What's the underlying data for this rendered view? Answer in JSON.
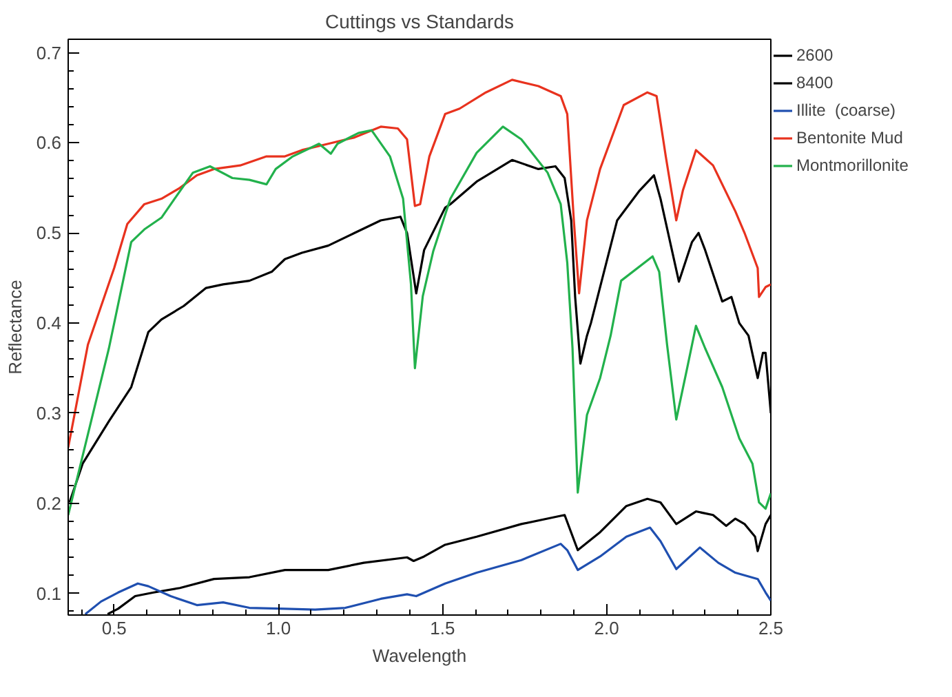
{
  "chart_data": {
    "type": "line",
    "title": "Cuttings vs Standards",
    "xlabel": "Wavelength",
    "ylabel": "Reflectance",
    "xlim": [
      0.36,
      2.5
    ],
    "ylim": [
      0.076,
      0.715
    ],
    "xticks": [
      {
        "value": 0.5,
        "label": "0.5"
      },
      {
        "value": 1,
        "label": "1.0"
      },
      {
        "value": 1.5,
        "label": "1.5"
      },
      {
        "value": 2,
        "label": "2.0"
      },
      {
        "value": 2.5,
        "label": "2.5"
      }
    ],
    "yticks": [
      {
        "value": 0.1,
        "label": "0.1"
      },
      {
        "value": 0.2,
        "label": "0.2"
      },
      {
        "value": 0.3,
        "label": "0.3"
      },
      {
        "value": 0.4,
        "label": "0.4"
      },
      {
        "value": 0.5,
        "label": "0.5"
      },
      {
        "value": 0.6,
        "label": "0.6"
      },
      {
        "value": 0.7,
        "label": "0.7"
      }
    ],
    "grid": false,
    "legend": "right",
    "marker": "none",
    "line_style": "solid",
    "series": [
      {
        "name": "2600",
        "color": "#000000",
        "x": [
          0.364,
          0.404,
          0.484,
          0.552,
          0.604,
          0.644,
          0.712,
          0.78,
          0.832,
          0.912,
          0.98,
          1.02,
          1.072,
          1.152,
          1.232,
          1.312,
          1.372,
          1.392,
          1.42,
          1.444,
          1.508,
          1.524,
          1.604,
          1.712,
          1.792,
          1.844,
          1.872,
          1.892,
          1.904,
          1.92,
          1.94,
          1.952,
          2.032,
          2.1,
          2.144,
          2.164,
          2.22,
          2.26,
          2.28,
          2.3,
          2.352,
          2.38,
          2.404,
          2.432,
          2.46,
          2.476,
          2.484,
          2.5
        ],
        "values": [
          0.201,
          0.244,
          0.291,
          0.329,
          0.39,
          0.404,
          0.419,
          0.439,
          0.443,
          0.447,
          0.457,
          0.471,
          0.478,
          0.486,
          0.5,
          0.514,
          0.518,
          0.5,
          0.433,
          0.481,
          0.528,
          0.532,
          0.557,
          0.581,
          0.571,
          0.574,
          0.561,
          0.514,
          0.429,
          0.355,
          0.386,
          0.4,
          0.514,
          0.547,
          0.564,
          0.538,
          0.446,
          0.49,
          0.5,
          0.481,
          0.424,
          0.429,
          0.4,
          0.386,
          0.339,
          0.367,
          0.367,
          0.3
        ]
      },
      {
        "name": "8400",
        "color": "#000000",
        "x": [
          0.48,
          0.512,
          0.564,
          0.62,
          0.7,
          0.804,
          0.912,
          1.02,
          1.152,
          1.26,
          1.392,
          1.412,
          1.444,
          1.508,
          1.604,
          1.74,
          1.832,
          1.872,
          1.912,
          1.98,
          2.06,
          2.124,
          2.164,
          2.212,
          2.272,
          2.324,
          2.364,
          2.392,
          2.42,
          2.452,
          2.46,
          2.484,
          2.5
        ],
        "values": [
          0.077,
          0.083,
          0.097,
          0.101,
          0.106,
          0.116,
          0.118,
          0.126,
          0.126,
          0.134,
          0.14,
          0.136,
          0.141,
          0.154,
          0.163,
          0.177,
          0.184,
          0.187,
          0.148,
          0.168,
          0.197,
          0.205,
          0.201,
          0.177,
          0.191,
          0.187,
          0.175,
          0.183,
          0.177,
          0.163,
          0.147,
          0.177,
          0.187
        ]
      },
      {
        "name": "Illite  (coarse)",
        "color": "#1f4fb0",
        "x": [
          0.412,
          0.46,
          0.512,
          0.572,
          0.604,
          0.672,
          0.752,
          0.832,
          0.912,
          1.02,
          1.112,
          1.204,
          1.312,
          1.392,
          1.42,
          1.508,
          1.604,
          1.74,
          1.86,
          1.88,
          1.912,
          1.98,
          2.06,
          2.132,
          2.164,
          2.212,
          2.284,
          2.34,
          2.392,
          2.46,
          2.484,
          2.5
        ],
        "values": [
          0.077,
          0.091,
          0.101,
          0.111,
          0.108,
          0.097,
          0.087,
          0.09,
          0.084,
          0.083,
          0.082,
          0.084,
          0.094,
          0.099,
          0.097,
          0.111,
          0.123,
          0.137,
          0.155,
          0.148,
          0.126,
          0.141,
          0.163,
          0.173,
          0.158,
          0.127,
          0.151,
          0.134,
          0.123,
          0.116,
          0.101,
          0.092
        ]
      },
      {
        "name": "Bentonite Mud",
        "color": "#e8321e",
        "x": [
          0.36,
          0.42,
          0.5,
          0.54,
          0.592,
          0.644,
          0.7,
          0.752,
          0.804,
          0.884,
          0.964,
          1.02,
          1.072,
          1.152,
          1.232,
          1.312,
          1.364,
          1.392,
          1.416,
          1.432,
          1.46,
          1.508,
          1.552,
          1.632,
          1.712,
          1.792,
          1.86,
          1.88,
          1.9,
          1.916,
          1.94,
          1.98,
          2.052,
          2.124,
          2.152,
          2.18,
          2.212,
          2.232,
          2.272,
          2.324,
          2.392,
          2.42,
          2.46,
          2.464,
          2.484,
          2.5
        ],
        "values": [
          0.262,
          0.376,
          0.461,
          0.51,
          0.532,
          0.538,
          0.55,
          0.564,
          0.571,
          0.575,
          0.585,
          0.585,
          0.592,
          0.599,
          0.606,
          0.618,
          0.616,
          0.604,
          0.53,
          0.532,
          0.585,
          0.632,
          0.638,
          0.656,
          0.67,
          0.663,
          0.652,
          0.632,
          0.514,
          0.433,
          0.514,
          0.571,
          0.642,
          0.656,
          0.652,
          0.585,
          0.514,
          0.547,
          0.592,
          0.575,
          0.524,
          0.5,
          0.461,
          0.429,
          0.44,
          0.443
        ]
      },
      {
        "name": "Montmorillonite",
        "color": "#22b14c",
        "x": [
          0.36,
          0.484,
          0.552,
          0.592,
          0.644,
          0.684,
          0.74,
          0.792,
          0.86,
          0.912,
          0.964,
          0.992,
          1.044,
          1.124,
          1.16,
          1.18,
          1.244,
          1.284,
          1.34,
          1.38,
          1.404,
          1.416,
          1.44,
          1.472,
          1.524,
          1.604,
          1.684,
          1.74,
          1.82,
          1.86,
          1.88,
          1.896,
          1.912,
          1.94,
          1.98,
          2.012,
          2.044,
          2.14,
          2.16,
          2.184,
          2.212,
          2.244,
          2.272,
          2.3,
          2.352,
          2.404,
          2.444,
          2.464,
          2.484,
          2.5
        ],
        "values": [
          0.187,
          0.372,
          0.49,
          0.504,
          0.517,
          0.538,
          0.567,
          0.574,
          0.561,
          0.559,
          0.554,
          0.571,
          0.585,
          0.599,
          0.588,
          0.599,
          0.611,
          0.614,
          0.585,
          0.538,
          0.443,
          0.35,
          0.43,
          0.48,
          0.538,
          0.589,
          0.618,
          0.604,
          0.567,
          0.532,
          0.467,
          0.372,
          0.212,
          0.298,
          0.339,
          0.386,
          0.447,
          0.474,
          0.457,
          0.376,
          0.293,
          0.348,
          0.397,
          0.372,
          0.329,
          0.272,
          0.244,
          0.201,
          0.194,
          0.211
        ]
      }
    ]
  }
}
